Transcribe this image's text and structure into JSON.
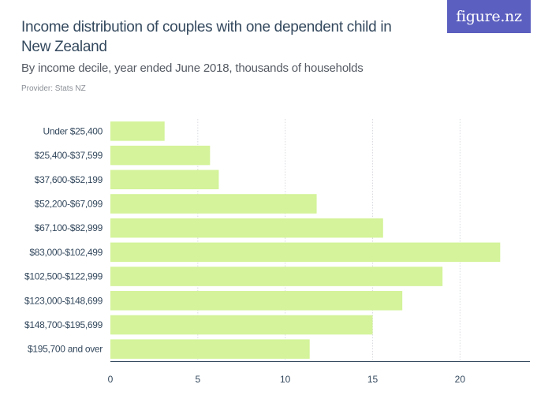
{
  "header": {
    "title": "Income distribution of couples with one dependent child in New Zealand",
    "subtitle": "By income decile, year ended June 2018, thousands of households",
    "provider": "Provider: Stats NZ",
    "logo": "figure.nz"
  },
  "colors": {
    "bar": "#d4f39a",
    "grid": "#d9dbe0",
    "axis": "#34495e",
    "logo_bg": "#5b5fbf"
  },
  "chart_data": {
    "type": "bar",
    "orientation": "horizontal",
    "categories": [
      "Under $25,400",
      "$25,400-$37,599",
      "$37,600-$52,199",
      "$52,200-$67,099",
      "$67,100-$82,999",
      "$83,000-$102,499",
      "$102,500-$122,999",
      "$123,000-$148,699",
      "$148,700-$195,699",
      "$195,700 and over"
    ],
    "values": [
      3.1,
      5.7,
      6.2,
      11.8,
      15.6,
      22.3,
      19.0,
      16.7,
      15.0,
      11.4
    ],
    "xticks": [
      "0",
      "5",
      "10",
      "15",
      "20"
    ],
    "xlim": [
      0,
      24
    ],
    "grid": "vertical"
  }
}
